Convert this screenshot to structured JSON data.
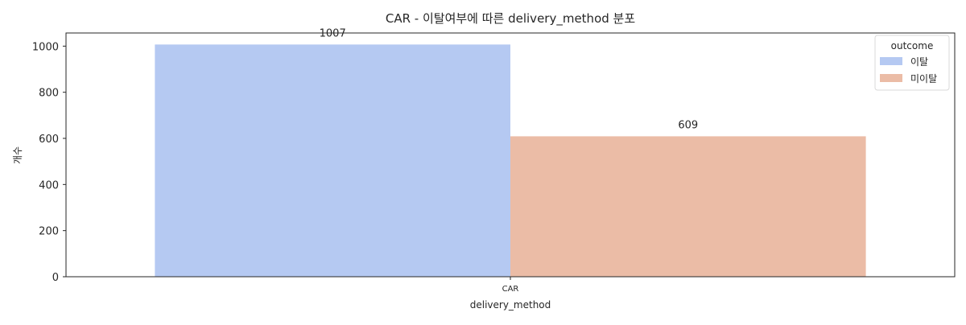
{
  "chart_data": {
    "type": "bar",
    "title": "CAR - 이탈여부에 따른 delivery_method 분포",
    "xlabel": "delivery_method",
    "ylabel": "개수",
    "categories": [
      "CAR"
    ],
    "series": [
      {
        "name": "이탈",
        "values": [
          1007
        ],
        "color": "#b5c9f2"
      },
      {
        "name": "미이탈",
        "values": [
          609
        ],
        "color": "#ebbca6"
      }
    ],
    "data_labels": [
      "1007",
      "609"
    ],
    "ylim": [
      0,
      1057
    ],
    "yticks": [
      0,
      200,
      400,
      600,
      800,
      1000
    ],
    "grid": false,
    "legend": {
      "title": "outcome",
      "placement": "top-right"
    }
  }
}
